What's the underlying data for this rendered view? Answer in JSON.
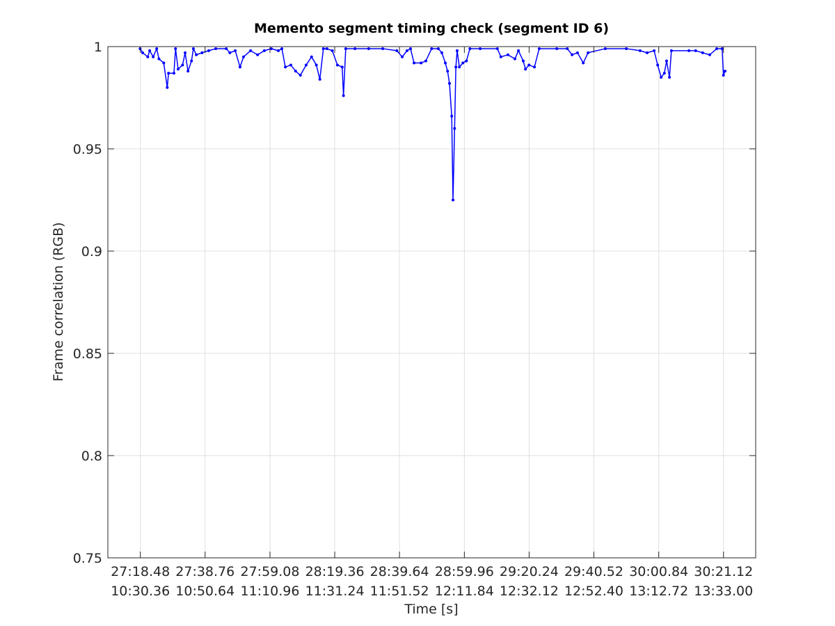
{
  "chart_data": {
    "type": "line",
    "title": "Memento segment timing check (segment ID 6)",
    "x_label": "Time [s]",
    "y_label": "Frame correlation (RGB)",
    "xlim": [
      1628.3,
      1831.2
    ],
    "ylim": [
      0.75,
      1
    ],
    "xticks": [
      {
        "value": 1638.48,
        "label": [
          "27:18.48",
          "10:30.36"
        ]
      },
      {
        "value": 1658.76,
        "label": [
          "27:38.76",
          "10:50.64"
        ]
      },
      {
        "value": 1679.08,
        "label": [
          "27:59.08",
          "11:10.96"
        ]
      },
      {
        "value": 1699.36,
        "label": [
          "28:19.36",
          "11:31.24"
        ]
      },
      {
        "value": 1719.64,
        "label": [
          "28:39.64",
          "11:51.52"
        ]
      },
      {
        "value": 1739.96,
        "label": [
          "28:59.96",
          "12:11.84"
        ]
      },
      {
        "value": 1760.24,
        "label": [
          "29:20.24",
          "12:32.12"
        ]
      },
      {
        "value": 1780.52,
        "label": [
          "29:40.52",
          "12:52.40"
        ]
      },
      {
        "value": 1800.84,
        "label": [
          "30:00.84",
          "13:12.72"
        ]
      },
      {
        "value": 1821.12,
        "label": [
          "30:21.12",
          "13:33.00"
        ]
      }
    ],
    "yticks": [
      0.75,
      0.8,
      0.85,
      0.9,
      0.95,
      1
    ],
    "grid": true,
    "series": [
      {
        "color": "#0000ff",
        "x": [
          1638.4,
          1639.2,
          1640.8,
          1641.4,
          1642.5,
          1643.6,
          1644.3,
          1645.8,
          1646.9,
          1647.3,
          1649.0,
          1649.5,
          1650.3,
          1651.7,
          1652.5,
          1653.4,
          1654.5,
          1655.1,
          1656.0,
          1657.8,
          1659.9,
          1662.1,
          1665.4,
          1666.5,
          1668.2,
          1669.7,
          1670.8,
          1673.0,
          1675.2,
          1677.3,
          1679.5,
          1681.7,
          1682.8,
          1683.9,
          1685.6,
          1687.1,
          1688.6,
          1690.4,
          1692.1,
          1693.6,
          1694.7,
          1695.8,
          1696.9,
          1698.6,
          1700.2,
          1701.7,
          1702.1,
          1702.8,
          1705.7,
          1710.0,
          1714.4,
          1718.8,
          1720.5,
          1722.0,
          1723.1,
          1724.2,
          1726.4,
          1727.9,
          1729.7,
          1731.8,
          1732.9,
          1734.0,
          1734.7,
          1735.3,
          1736.0,
          1736.4,
          1736.9,
          1737.3,
          1737.7,
          1738.4,
          1739.5,
          1740.6,
          1741.7,
          1744.9,
          1750.3,
          1751.4,
          1753.6,
          1755.8,
          1756.9,
          1758.4,
          1759.1,
          1760.2,
          1761.9,
          1763.4,
          1768.9,
          1772.2,
          1773.7,
          1775.4,
          1777.2,
          1778.7,
          1784.1,
          1790.7,
          1795.0,
          1797.2,
          1799.4,
          1800.5,
          1801.6,
          1802.6,
          1803.3,
          1804.2,
          1804.8,
          1810.3,
          1812.4,
          1814.6,
          1816.8,
          1819.0,
          1820.7,
          1821.1,
          1821.6
        ],
        "values": [
          0.999,
          0.997,
          0.995,
          0.998,
          0.995,
          0.999,
          0.994,
          0.992,
          0.98,
          0.987,
          0.987,
          0.999,
          0.989,
          0.991,
          0.997,
          0.988,
          0.993,
          0.999,
          0.996,
          0.997,
          0.998,
          0.999,
          0.999,
          0.997,
          0.998,
          0.99,
          0.995,
          0.998,
          0.996,
          0.998,
          0.999,
          0.998,
          0.999,
          0.99,
          0.991,
          0.988,
          0.986,
          0.991,
          0.995,
          0.991,
          0.984,
          0.999,
          0.999,
          0.998,
          0.991,
          0.99,
          0.976,
          0.999,
          0.999,
          0.999,
          0.999,
          0.998,
          0.995,
          0.998,
          0.999,
          0.992,
          0.992,
          0.993,
          0.999,
          0.999,
          0.997,
          0.992,
          0.988,
          0.982,
          0.966,
          0.925,
          0.96,
          0.99,
          0.998,
          0.99,
          0.992,
          0.993,
          0.999,
          0.999,
          0.999,
          0.995,
          0.996,
          0.994,
          0.998,
          0.993,
          0.989,
          0.991,
          0.99,
          0.999,
          0.999,
          0.999,
          0.996,
          0.997,
          0.992,
          0.997,
          0.999,
          0.999,
          0.998,
          0.997,
          0.998,
          0.991,
          0.985,
          0.987,
          0.993,
          0.985,
          0.998,
          0.998,
          0.998,
          0.997,
          0.996,
          0.999,
          0.999,
          0.986,
          0.988
        ]
      }
    ]
  }
}
